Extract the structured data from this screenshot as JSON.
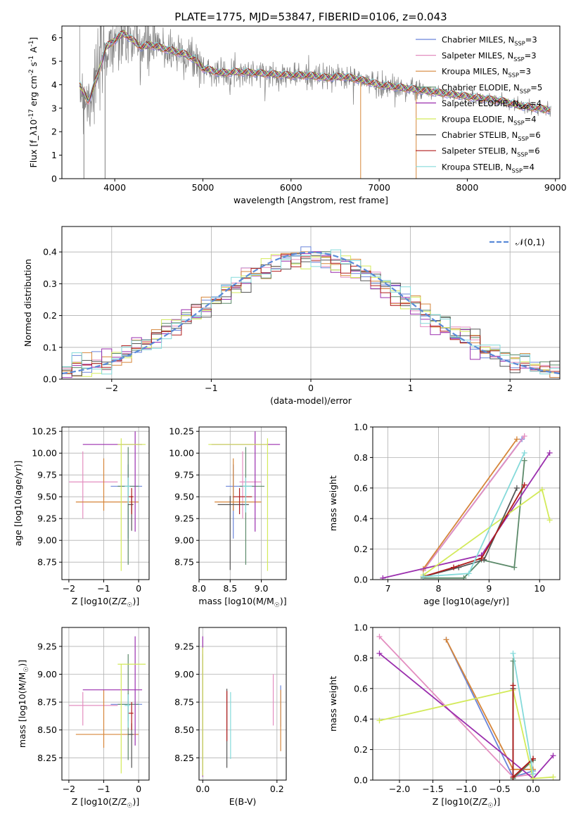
{
  "figure": {
    "title": "PLATE=1775, MJD=53847, FIBERID=0106, z=0.043"
  },
  "series_meta": [
    {
      "name": "Chabrier MILES, N$_{SSP}$=3",
      "color": "#6a85d9"
    },
    {
      "name": "Salpeter MILES, N$_{SSP}$=3",
      "color": "#e38ec0"
    },
    {
      "name": "Kroupa MILES, N$_{SSP}$=3",
      "color": "#d6863a"
    },
    {
      "name": "Chabrier ELODIE, N$_{SSP}$=5",
      "color": "#5c8a6a"
    },
    {
      "name": "Salpeter ELODIE, N$_{SSP}$=4",
      "color": "#9b2fae"
    },
    {
      "name": "Kroupa ELODIE, N$_{SSP}$=4",
      "color": "#d3ea5a"
    },
    {
      "name": "Chabrier STELIB, N$_{SSP}$=6",
      "color": "#555555"
    },
    {
      "name": "Salpeter STELIB, N$_{SSP}$=6",
      "color": "#b01c1c"
    },
    {
      "name": "Kroupa STELIB, N$_{SSP}$=4",
      "color": "#85dada"
    }
  ],
  "chart_data": [
    {
      "id": "spectrum",
      "type": "line",
      "xlabel": "wavelength [Angstrom, rest frame]",
      "ylabel": "Flux [f_λ10^-17 erg cm^-2 s^-1 A^-1]",
      "xlim": [
        3400,
        9050
      ],
      "ylim": [
        0,
        6.5
      ],
      "xticks": [
        4000,
        5000,
        6000,
        7000,
        8000,
        9000
      ],
      "yticks": [
        0,
        1,
        2,
        3,
        4,
        5,
        6
      ],
      "grid": false,
      "legend": "right",
      "data_color": "#808080",
      "continuum": [
        [
          3600,
          4.0
        ],
        [
          3700,
          3.3
        ],
        [
          3800,
          4.3
        ],
        [
          3900,
          5.6
        ],
        [
          4000,
          5.9
        ],
        [
          4100,
          6.2
        ],
        [
          4200,
          5.9
        ],
        [
          4300,
          5.6
        ],
        [
          4400,
          5.7
        ],
        [
          4500,
          5.6
        ],
        [
          4600,
          5.5
        ],
        [
          4700,
          5.4
        ],
        [
          4800,
          5.3
        ],
        [
          4900,
          5.1
        ],
        [
          5000,
          4.7
        ],
        [
          5200,
          4.5
        ],
        [
          5400,
          4.55
        ],
        [
          5600,
          4.5
        ],
        [
          5800,
          4.45
        ],
        [
          6000,
          4.4
        ],
        [
          6200,
          4.4
        ],
        [
          6400,
          4.3
        ],
        [
          6600,
          4.35
        ],
        [
          6800,
          4.2
        ],
        [
          7000,
          4.0
        ],
        [
          7200,
          3.9
        ],
        [
          7400,
          3.8
        ],
        [
          7600,
          3.7
        ],
        [
          7800,
          3.6
        ],
        [
          8000,
          3.5
        ],
        [
          8200,
          3.4
        ],
        [
          8400,
          3.3
        ],
        [
          8600,
          3.1
        ],
        [
          8800,
          3.0
        ],
        [
          9000,
          2.9
        ]
      ]
    },
    {
      "id": "residuals",
      "type": "histogram",
      "xlabel": "(data-model)/error",
      "ylabel": "Normed distribution",
      "xlim": [
        -2.5,
        2.5
      ],
      "ylim": [
        0,
        0.48
      ],
      "xticks": [
        -2,
        -1,
        0,
        1,
        2
      ],
      "yticks": [
        0.0,
        0.1,
        0.2,
        0.3,
        0.4
      ],
      "grid": true,
      "legend": "top-right",
      "reference": {
        "name": "𝒩(0,1)",
        "mu": 0,
        "sigma": 1,
        "color": "#5a8ad8"
      }
    },
    {
      "id": "age_vs_Z",
      "type": "errorbar",
      "xlabel": "Z [log10(Z/Z☉)]",
      "ylabel": "age [log10(age/yr)]",
      "xlim": [
        -2.2,
        0.3
      ],
      "ylim": [
        8.55,
        10.3
      ],
      "xticks": [
        -2,
        -1,
        0
      ],
      "yticks": [
        8.75,
        9.0,
        9.25,
        9.5,
        9.75,
        10.0,
        10.25
      ],
      "grid": true,
      "points": [
        {
          "s": 0,
          "x": -0.3,
          "y": 9.62,
          "xerr": [
            0.5,
            0.4
          ],
          "yerr": [
            0.6,
            0.25
          ]
        },
        {
          "s": 1,
          "x": -1.6,
          "y": 9.67,
          "xerr": [
            0.4,
            1.0
          ],
          "yerr": [
            0.42,
            0.35
          ]
        },
        {
          "s": 2,
          "x": -1.0,
          "y": 9.44,
          "xerr": [
            0.8,
            1.0
          ],
          "yerr": [
            0.1,
            0.5
          ]
        },
        {
          "s": 3,
          "x": -0.3,
          "y": 9.62,
          "xerr": [
            0.3,
            0.3
          ],
          "yerr": [
            0.9,
            0.45
          ]
        },
        {
          "s": 4,
          "x": -0.1,
          "y": 10.1,
          "xerr": [
            1.5,
            0.2
          ],
          "yerr": [
            1.0,
            0.15
          ]
        },
        {
          "s": 5,
          "x": -0.5,
          "y": 10.1,
          "xerr": [
            0.1,
            0.7
          ],
          "yerr": [
            1.45,
            0.07
          ]
        },
        {
          "s": 6,
          "x": -0.2,
          "y": 9.41,
          "xerr": [
            0.1,
            0.05
          ],
          "yerr": [
            0.3,
            0.1
          ]
        },
        {
          "s": 7,
          "x": -0.2,
          "y": 9.5,
          "xerr": [
            0.1,
            0.05
          ],
          "yerr": [
            0.2,
            0.1
          ]
        },
        {
          "s": 8,
          "x": -0.3,
          "y": 9.62,
          "xerr": [
            0.1,
            0.05
          ],
          "yerr": [
            0.2,
            0.1
          ]
        }
      ]
    },
    {
      "id": "age_vs_mass",
      "type": "errorbar",
      "xlabel": "mass [log10(M/M☉)]",
      "ylabel": "",
      "xlim": [
        8.0,
        9.4
      ],
      "ylim": [
        8.55,
        10.3
      ],
      "xticks": [
        8.0,
        8.5,
        9.0
      ],
      "yticks": [
        8.75,
        9.0,
        9.25,
        9.5,
        9.75,
        10.0,
        10.25
      ],
      "grid": true,
      "points": [
        {
          "s": 0,
          "x": 8.55,
          "y": 9.62,
          "xerr": [
            0.12,
            0.33
          ],
          "yerr": [
            0.6,
            0.25
          ]
        },
        {
          "s": 1,
          "x": 8.7,
          "y": 9.67,
          "xerr": [
            0.05,
            0.3
          ],
          "yerr": [
            0.42,
            0.35
          ]
        },
        {
          "s": 2,
          "x": 8.55,
          "y": 9.44,
          "xerr": [
            0.3,
            0.45
          ],
          "yerr": [
            0.1,
            0.5
          ]
        },
        {
          "s": 3,
          "x": 8.75,
          "y": 9.62,
          "xerr": [
            0.1,
            0.3
          ],
          "yerr": [
            0.9,
            0.45
          ]
        },
        {
          "s": 4,
          "x": 8.9,
          "y": 10.1,
          "xerr": [
            0.7,
            0.4
          ],
          "yerr": [
            1.0,
            0.15
          ]
        },
        {
          "s": 5,
          "x": 9.1,
          "y": 10.1,
          "xerr": [
            0.95,
            0.0
          ],
          "yerr": [
            1.45,
            0.07
          ]
        },
        {
          "s": 6,
          "x": 8.5,
          "y": 9.41,
          "xerr": [
            0.2,
            0.3
          ],
          "yerr": [
            0.75,
            0.1
          ]
        },
        {
          "s": 7,
          "x": 8.65,
          "y": 9.5,
          "xerr": [
            0.1,
            0.2
          ],
          "yerr": [
            0.2,
            0.1
          ]
        },
        {
          "s": 8,
          "x": 8.75,
          "y": 9.62,
          "xerr": [
            0.05,
            0.1
          ],
          "yerr": [
            0.3,
            0.1
          ]
        }
      ]
    },
    {
      "id": "mass_weight_vs_age",
      "type": "line",
      "xlabel": "age [log10(age/yr)]",
      "ylabel": "mass weight",
      "xlim": [
        6.7,
        10.4
      ],
      "ylim": [
        0,
        1.0
      ],
      "xticks": [
        7,
        8,
        9,
        10
      ],
      "yticks": [
        0.0,
        0.2,
        0.4,
        0.6,
        0.8,
        1.0
      ],
      "grid": true,
      "series": [
        {
          "s": 0,
          "points": [
            [
              7.7,
              0.06
            ],
            [
              9.65,
              0.92
            ]
          ]
        },
        {
          "s": 1,
          "points": [
            [
              7.7,
              0.06
            ],
            [
              9.7,
              0.94
            ]
          ]
        },
        {
          "s": 2,
          "points": [
            [
              7.7,
              0.07
            ],
            [
              9.55,
              0.92
            ]
          ]
        },
        {
          "s": 3,
          "points": [
            [
              7.7,
              0.01
            ],
            [
              8.5,
              0.01
            ],
            [
              8.85,
              0.13
            ],
            [
              9.5,
              0.08
            ],
            [
              9.7,
              0.78
            ]
          ]
        },
        {
          "s": 4,
          "points": [
            [
              6.9,
              0.01
            ],
            [
              8.85,
              0.16
            ],
            [
              10.2,
              0.83
            ]
          ]
        },
        {
          "s": 5,
          "points": [
            [
              7.7,
              0.03
            ],
            [
              10.05,
              0.59
            ],
            [
              10.2,
              0.39
            ]
          ]
        },
        {
          "s": 6,
          "points": [
            [
              7.7,
              0.02
            ],
            [
              8.4,
              0.08
            ],
            [
              8.9,
              0.13
            ],
            [
              9.55,
              0.6
            ]
          ]
        },
        {
          "s": 7,
          "points": [
            [
              7.7,
              0.02
            ],
            [
              8.3,
              0.08
            ],
            [
              8.85,
              0.14
            ],
            [
              9.7,
              0.62
            ]
          ]
        },
        {
          "s": 8,
          "points": [
            [
              7.7,
              0.02
            ],
            [
              8.6,
              0.04
            ],
            [
              9.7,
              0.83
            ]
          ]
        }
      ]
    },
    {
      "id": "mass_vs_Z",
      "type": "errorbar",
      "xlabel": "Z [log10(Z/Z☉)]",
      "ylabel": "mass [log10(M/M☉)]",
      "xlim": [
        -2.2,
        0.3
      ],
      "ylim": [
        8.05,
        9.42
      ],
      "xticks": [
        -2,
        -1,
        0
      ],
      "yticks": [
        8.25,
        8.5,
        8.75,
        9.0,
        9.25
      ],
      "grid": true,
      "points": [
        {
          "s": 0,
          "x": -0.3,
          "y": 8.73,
          "xerr": [
            0.5,
            0.4
          ],
          "yerr": [
            0.15,
            0.1
          ]
        },
        {
          "s": 1,
          "x": -1.6,
          "y": 8.72,
          "xerr": [
            0.4,
            1.0
          ],
          "yerr": [
            0.18,
            0.12
          ]
        },
        {
          "s": 2,
          "x": -1.0,
          "y": 8.46,
          "xerr": [
            0.8,
            1.0
          ],
          "yerr": [
            0.12,
            0.4
          ]
        },
        {
          "s": 3,
          "x": -0.3,
          "y": 8.73,
          "xerr": [
            0.3,
            0.3
          ],
          "yerr": [
            0.5,
            0.45
          ]
        },
        {
          "s": 4,
          "x": -0.1,
          "y": 8.86,
          "xerr": [
            1.5,
            0.2
          ],
          "yerr": [
            0.5,
            0.48
          ]
        },
        {
          "s": 5,
          "x": -0.5,
          "y": 9.09,
          "xerr": [
            0.1,
            0.7
          ],
          "yerr": [
            0.98,
            0.0
          ]
        },
        {
          "s": 6,
          "x": -0.2,
          "y": 8.46,
          "xerr": [
            0.1,
            0.05
          ],
          "yerr": [
            0.3,
            0.1
          ]
        },
        {
          "s": 7,
          "x": -0.2,
          "y": 8.65,
          "xerr": [
            0.1,
            0.05
          ],
          "yerr": [
            0.15,
            0.1
          ]
        },
        {
          "s": 8,
          "x": -0.3,
          "y": 8.72,
          "xerr": [
            0.1,
            0.05
          ],
          "yerr": [
            0.2,
            0.1
          ]
        }
      ]
    },
    {
      "id": "mass_vs_ebv",
      "type": "errorbar",
      "xlabel": "E(B-V)",
      "ylabel": "",
      "xlim": [
        -0.01,
        0.225
      ],
      "ylim": [
        8.05,
        9.42
      ],
      "xticks": [
        0.0,
        0.2
      ],
      "yticks": [
        8.25,
        8.5,
        8.75,
        9.0,
        9.25
      ],
      "grid": true,
      "points": [
        {
          "s": 0,
          "x": 0.21,
          "y": 8.73,
          "xerr": [
            0,
            0
          ],
          "yerr": [
            0.2,
            0.17
          ]
        },
        {
          "s": 1,
          "x": 0.19,
          "y": 8.72,
          "xerr": [
            0,
            0
          ],
          "yerr": [
            0.18,
            0.28
          ]
        },
        {
          "s": 2,
          "x": 0.21,
          "y": 8.46,
          "xerr": [
            0,
            0
          ],
          "yerr": [
            0.15,
            0.4
          ]
        },
        {
          "s": 3,
          "x": 0.0,
          "y": 8.73,
          "xerr": [
            0,
            0
          ],
          "yerr": [
            0.6,
            0.45
          ]
        },
        {
          "s": 4,
          "x": 0.0,
          "y": 8.86,
          "xerr": [
            0,
            0
          ],
          "yerr": [
            0.78,
            0.48
          ]
        },
        {
          "s": 5,
          "x": 0.0,
          "y": 9.09,
          "xerr": [
            0,
            0
          ],
          "yerr": [
            1.0,
            0.15
          ]
        },
        {
          "s": 6,
          "x": 0.065,
          "y": 8.46,
          "xerr": [
            0,
            0
          ],
          "yerr": [
            0.3,
            0.41
          ]
        },
        {
          "s": 7,
          "x": 0.065,
          "y": 8.65,
          "xerr": [
            0,
            0
          ],
          "yerr": [
            0.25,
            0.2
          ]
        },
        {
          "s": 8,
          "x": 0.075,
          "y": 8.72,
          "xerr": [
            0,
            0
          ],
          "yerr": [
            0.48,
            0.12
          ]
        }
      ]
    },
    {
      "id": "mass_weight_vs_Z",
      "type": "line",
      "xlabel": "Z [log10(Z/Z☉)]",
      "ylabel": "mass weight",
      "xlim": [
        -2.4,
        0.4
      ],
      "ylim": [
        0,
        1.0
      ],
      "xticks": [
        -2.0,
        -1.5,
        -1.0,
        -0.5,
        0.0
      ],
      "yticks": [
        0.0,
        0.2,
        0.4,
        0.6,
        0.8,
        1.0
      ],
      "grid": true,
      "series": [
        {
          "s": 0,
          "points": [
            [
              -1.3,
              0.92
            ],
            [
              -0.3,
              0.02
            ],
            [
              0.0,
              0.06
            ]
          ]
        },
        {
          "s": 1,
          "points": [
            [
              -2.3,
              0.94
            ],
            [
              -0.3,
              0.02
            ],
            [
              0.0,
              0.04
            ]
          ]
        },
        {
          "s": 2,
          "points": [
            [
              -1.3,
              0.92
            ],
            [
              -0.3,
              0.07
            ],
            [
              0.0,
              0.07
            ]
          ]
        },
        {
          "s": 3,
          "points": [
            [
              -0.3,
              0.78
            ],
            [
              -0.3,
              0.01
            ],
            [
              0.0,
              0.13
            ]
          ]
        },
        {
          "s": 4,
          "points": [
            [
              -2.3,
              0.83
            ],
            [
              0.0,
              0.01
            ],
            [
              0.3,
              0.16
            ]
          ]
        },
        {
          "s": 5,
          "points": [
            [
              -2.3,
              0.39
            ],
            [
              -0.3,
              0.59
            ],
            [
              0.0,
              0.01
            ],
            [
              0.3,
              0.02
            ]
          ]
        },
        {
          "s": 6,
          "points": [
            [
              -0.3,
              0.6
            ],
            [
              -0.3,
              0.02
            ],
            [
              0.0,
              0.14
            ]
          ]
        },
        {
          "s": 7,
          "points": [
            [
              -0.3,
              0.62
            ],
            [
              -0.3,
              0.02
            ],
            [
              0.0,
              0.14
            ]
          ]
        },
        {
          "s": 8,
          "points": [
            [
              -0.3,
              0.83
            ],
            [
              0.0,
              0.04
            ]
          ]
        }
      ]
    }
  ]
}
